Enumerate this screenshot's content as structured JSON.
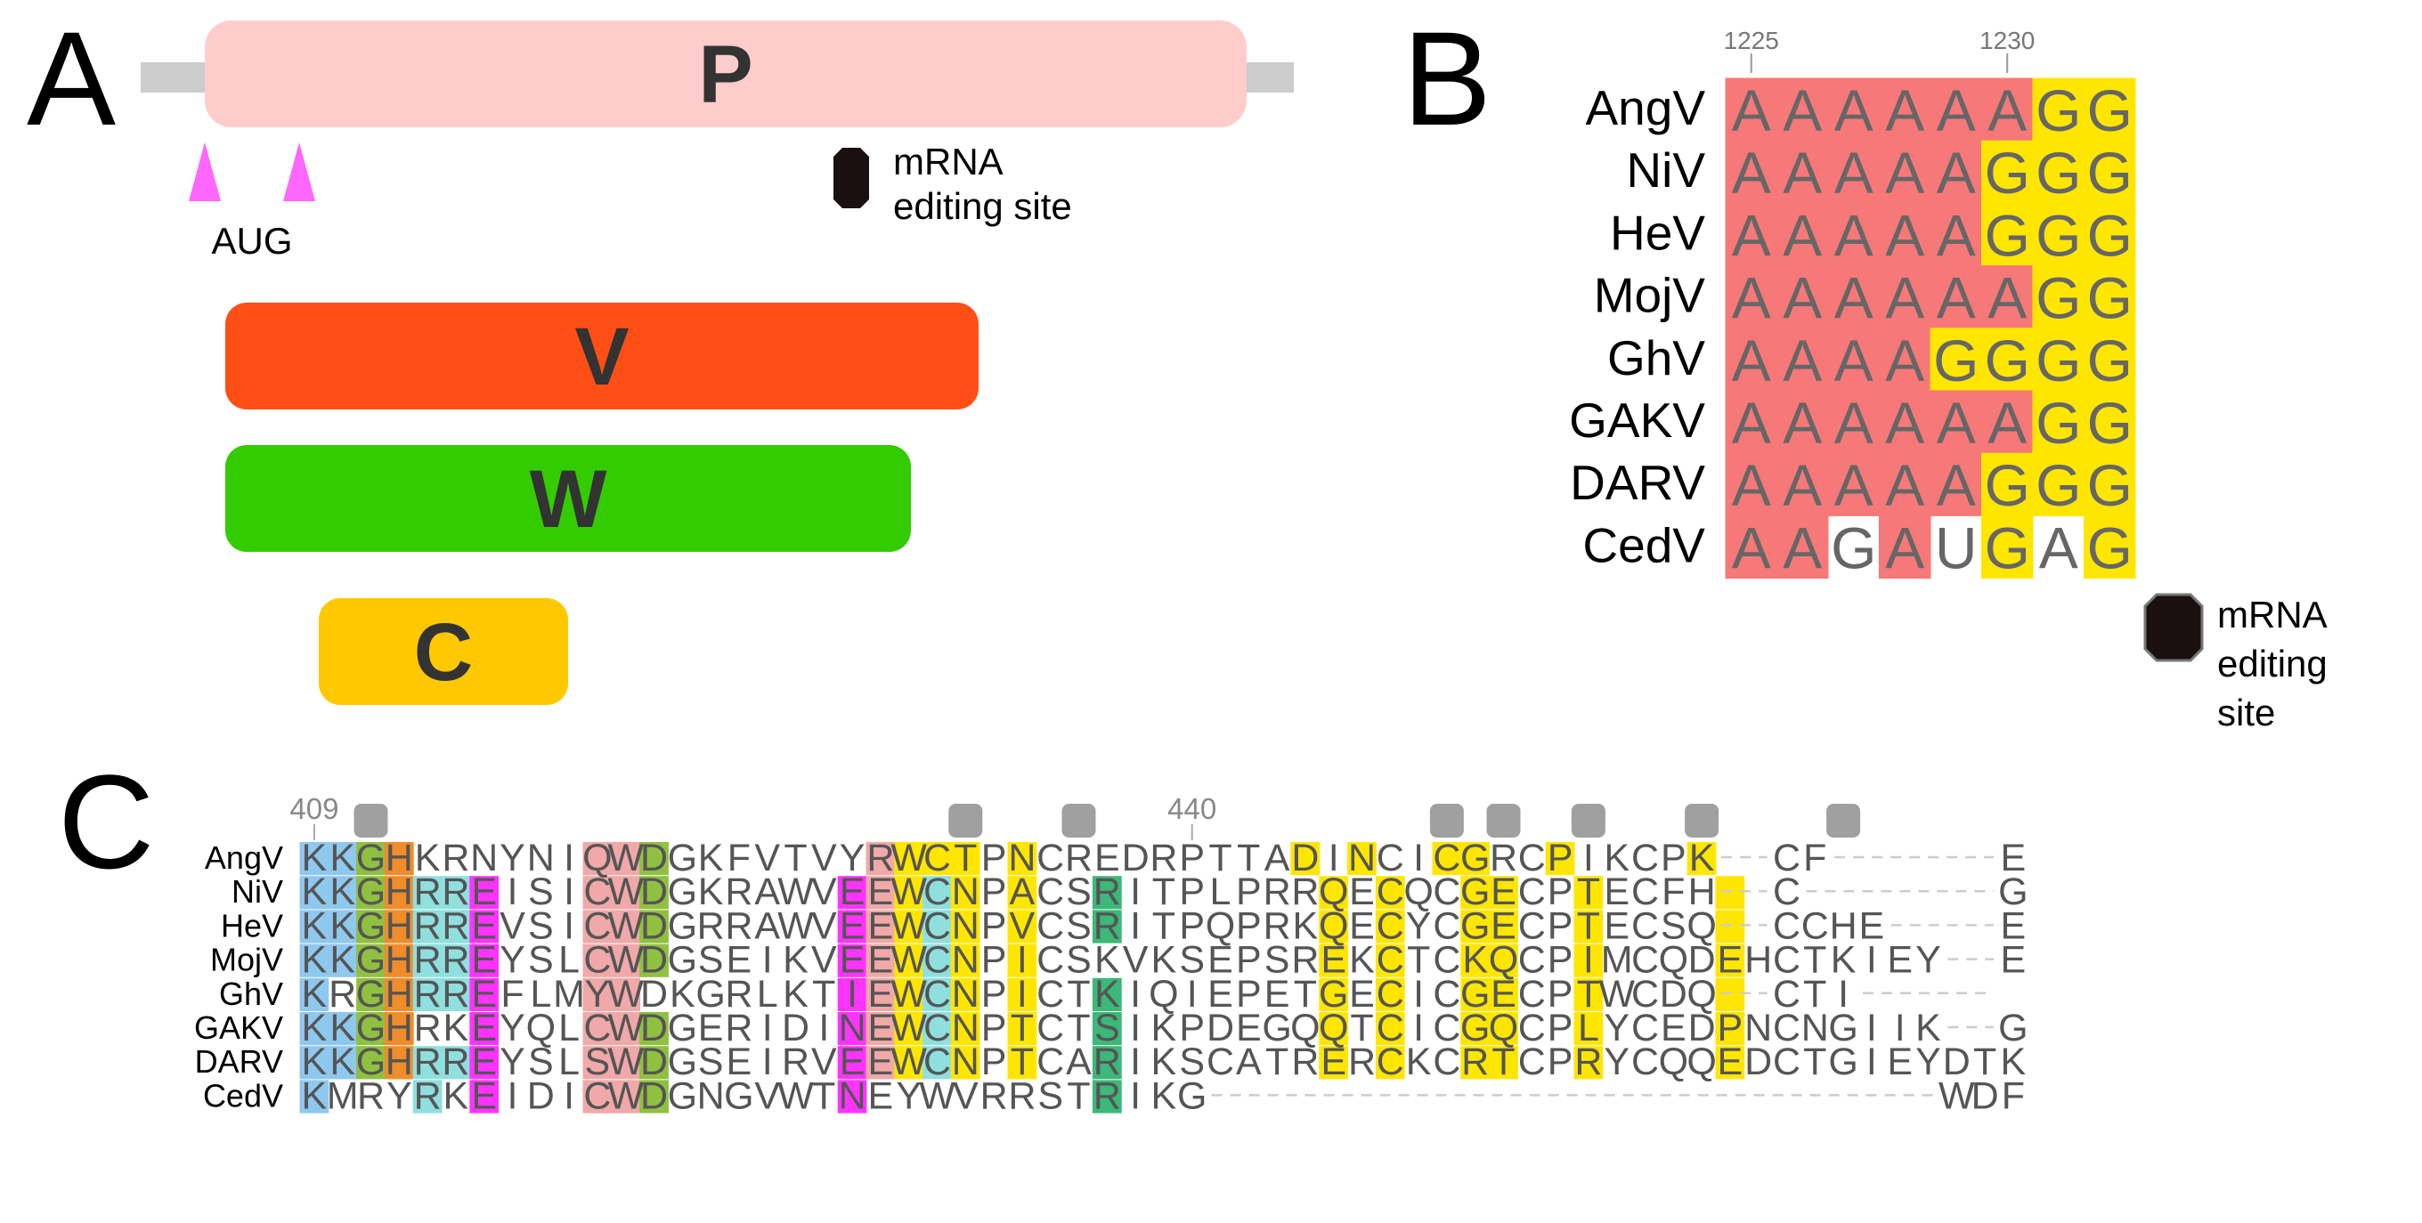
{
  "panel_a": {
    "letter": "A",
    "p_label": "P",
    "v_label": "V",
    "w_label": "W",
    "c_label": "C",
    "aug_label": "AUG",
    "edit_label_1": "mRNA",
    "edit_label_2": "editing site",
    "colors": {
      "P": "#ffcccc",
      "V": "#ff4f17",
      "W": "#33cc00",
      "C": "#ffc800",
      "aug": "#ff66ff",
      "flank": "#cccccc"
    }
  },
  "panel_b": {
    "letter": "B",
    "positions": [
      {
        "label": "1225",
        "col": 0
      },
      {
        "label": "1230",
        "col": 5
      }
    ],
    "rows": [
      {
        "name": "AngV",
        "seq": "AAAAAAGG"
      },
      {
        "name": "NiV",
        "seq": "AAAAAGGG"
      },
      {
        "name": "HeV",
        "seq": "AAAAAGGG"
      },
      {
        "name": "MojV",
        "seq": "AAAAAAGG"
      },
      {
        "name": "GhV",
        "seq": "AAAAGGGG"
      },
      {
        "name": "GAKV",
        "seq": "AAAAAAGG"
      },
      {
        "name": "DARV",
        "seq": "AAAAAGGG"
      },
      {
        "name": "CedV",
        "seq": "AAGAUGAG"
      }
    ],
    "highlight": [
      "RRRRRRYY",
      "RRRRRYYY",
      "RRRRRYYY",
      "RRRRRRYY",
      "RRRRYYYY",
      "RRRRRRYY",
      "RRRRRYYY",
      "RR.R.Y.Y"
    ],
    "edit_label_1": "mRNA",
    "edit_label_2": "editing",
    "edit_label_3": "site",
    "colors": {
      "R": "#f77878",
      "Y": "#ffe600"
    }
  },
  "panel_c": {
    "letter": "C",
    "positions": [
      {
        "label": "409",
        "col": 0
      },
      {
        "label": "440",
        "col": 31
      }
    ],
    "markers": [
      2,
      23,
      27,
      40,
      42,
      45,
      49,
      54
    ],
    "rows": [
      {
        "name": "AngV",
        "seq": "KKGHKRNYNIQWDGKFVTVYRWCTPNCREDRPTTADINCICGRCPIKCPK--CF------E"
      },
      {
        "name": "NiV",
        "seq": "KKGHRREISICWDGKRAWVEEWCNPACSRITPLPRRQECQCGECPTECFH--C-------G"
      },
      {
        "name": "HeV",
        "seq": "KKGHRREVSICWDGRRAWVEEWCNPVCSRITPQPRKQECYCGECPTECSQ--CCHE----E"
      },
      {
        "name": "MojV",
        "seq": "KKGHRREYSLCWDGSEIKVEEWCNPICSKVKSEPSREKCTCKQCPIMCQDEHCTKIEY--E"
      },
      {
        "name": "GhV",
        "seq": "KRGHRREFLMYWDKGRLKTIEWCNPICTKIQIEPETGECICGECPTWCDQ--CTI----- "
      },
      {
        "name": "GAKV",
        "seq": "KKGHRKEYQLCWDGERIDINEWCNPTCTSIKPDEGQQTCICGQCPLYCEDPNCNGIIK--G"
      },
      {
        "name": "DARV",
        "seq": "KKGHRREYSLSWDGSEIRVEEWCNPTCARIKSCATRERCKCRTCPRYCQQEDCTGIEYDTK"
      },
      {
        "name": "CedV",
        "seq": "KMRYRKEIDICWDGNGVWTNEYWVRRSTRIKG--------------------------WDF "
      }
    ],
    "highlight": [
      "BBGO......PPG.......PYYY.Y.........Y.Y..YY..Y....Y........",
      "BBGOCCM...PPG......MPYCY.Y..T.......Y.Y..YY..Y....Y........",
      "BBGOCCM...PPG......MPYCY.Y..T.......Y.Y..YY..Y....Y........",
      "BBGOCCM...PPG......MPYCY.Y..........Y.Y..YY..Y....Y........",
      "B.GOCCM...PP.......MPYCY.Y..T.......Y.Y..YY..Y....Y........",
      "BBGO..M...PPG......MPYCY.Y..T.......Y.Y..YY..Y....Y........",
      "BBGOCCM...PPG......MPYCY.Y..T.......Y.Y..YY..Y....Y........",
      "B...C.M...PPG......M........T..............................."
    ],
    "colors": {
      "B": "#8fc8ee",
      "G": "#90c040",
      "O": "#f08c2a",
      "C": "#8fdfdf",
      "M": "#ff33ff",
      "P": "#f0a8a8",
      "Y": "#ffe600",
      "T": "#3cb878",
      "marker": "#a0a0a0"
    }
  }
}
